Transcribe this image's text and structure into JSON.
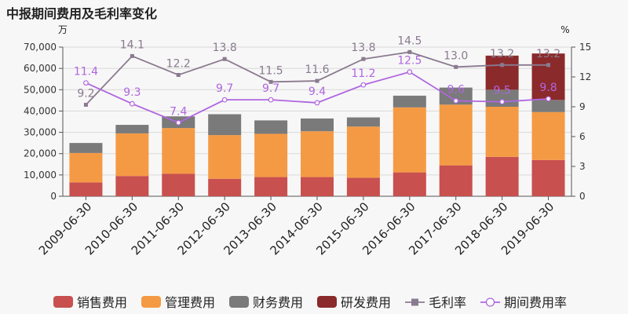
{
  "header": {
    "title": "中报期间费用及毛利率变化"
  },
  "chart_data": {
    "type": "bar",
    "stacked": true,
    "title": "中报期间费用及毛利率变化",
    "y_left_unit": "万",
    "y_right_unit": "%",
    "ylim_left": [
      0,
      70000
    ],
    "ylim_right": [
      0,
      15
    ],
    "y_left_ticks": [
      0,
      10000,
      20000,
      30000,
      40000,
      50000,
      60000,
      70000
    ],
    "y_right_ticks": [
      0,
      3,
      6,
      9,
      12,
      15
    ],
    "categories": [
      "2009-06-30",
      "2010-06-30",
      "2011-06-30",
      "2012-06-30",
      "2013-06-30",
      "2014-06-30",
      "2015-06-30",
      "2016-06-30",
      "2017-06-30",
      "2018-06-30",
      "2019-06-30"
    ],
    "series": [
      {
        "name": "销售费用",
        "kind": "bar",
        "color": "#c8504f",
        "values": [
          6500,
          9500,
          10500,
          8200,
          9000,
          9000,
          8700,
          11200,
          14500,
          18500,
          17000
        ]
      },
      {
        "name": "管理费用",
        "kind": "bar",
        "color": "#f59a44",
        "values": [
          13800,
          20000,
          21500,
          20500,
          20300,
          21500,
          24000,
          30500,
          28500,
          23500,
          22500
        ]
      },
      {
        "name": "财务费用",
        "kind": "bar",
        "color": "#7a7a7a",
        "values": [
          4700,
          4000,
          5500,
          9800,
          6300,
          6000,
          4300,
          5500,
          8000,
          8000,
          5700
        ]
      },
      {
        "name": "研发费用",
        "kind": "bar",
        "color": "#8b2a2b",
        "values": [
          0,
          0,
          0,
          0,
          0,
          0,
          0,
          0,
          0,
          16000,
          21800
        ]
      },
      {
        "name": "毛利率",
        "kind": "line",
        "axis": "right",
        "marker": "square",
        "color": "#8a7a8f",
        "values": [
          9.2,
          14.1,
          12.2,
          13.8,
          11.5,
          11.6,
          13.8,
          14.5,
          13.0,
          13.2,
          13.2
        ]
      },
      {
        "name": "期间费用率",
        "kind": "line",
        "axis": "right",
        "marker": "circle",
        "color": "#b066e0",
        "values": [
          11.4,
          9.3,
          7.4,
          9.7,
          9.7,
          9.4,
          11.2,
          12.5,
          9.6,
          9.5,
          9.8
        ]
      }
    ],
    "grid": true,
    "legend_position": "bottom"
  }
}
